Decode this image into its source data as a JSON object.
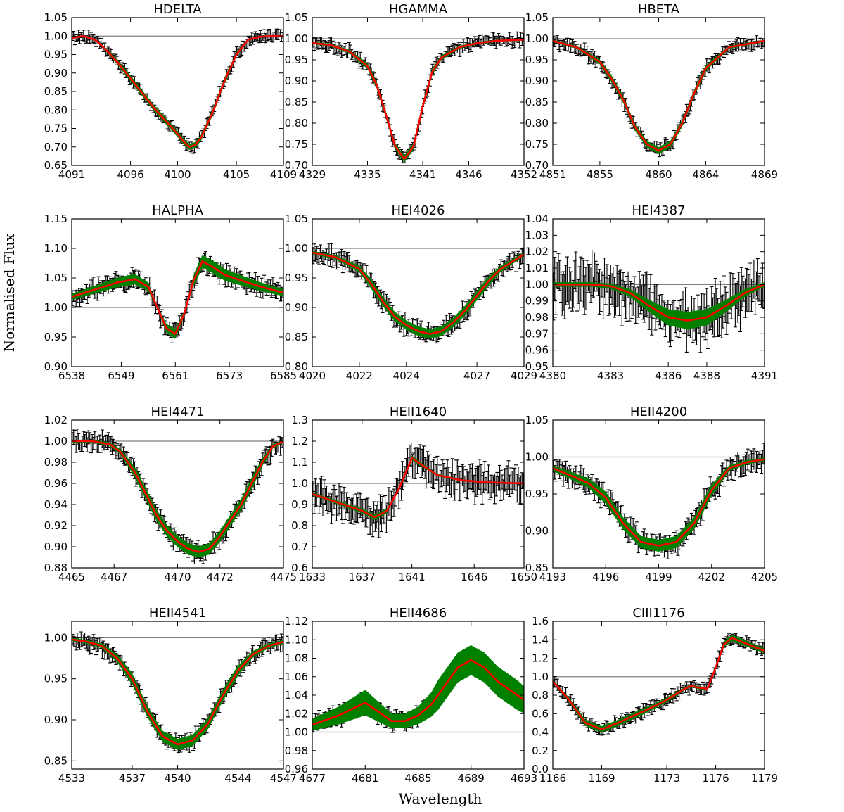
{
  "figure": {
    "xlabel": "Wavelength",
    "ylabel": "Normalised Flux"
  },
  "colors": {
    "data": "#000000",
    "band": "#008000",
    "model": "#ff0000",
    "continuum": "#808080"
  },
  "chart_data": [
    {
      "type": "line",
      "title": "HDELTA",
      "xlim": [
        4091,
        4109
      ],
      "ylim": [
        0.65,
        1.05
      ],
      "xticks": [
        "4091",
        "4096",
        "4100",
        "4105",
        "4109"
      ],
      "yticks": [
        "0.65",
        "0.70",
        "0.75",
        "0.80",
        "0.85",
        "0.90",
        "0.95",
        "1.00",
        "1.05"
      ],
      "continuum": 1.0,
      "error": 0.012,
      "band_width": 0.006,
      "model": {
        "x": [
          4091,
          4092,
          4093,
          4094,
          4095,
          4096,
          4097,
          4098,
          4099,
          4100,
          4100.5,
          4101,
          4101.5,
          4102,
          4103,
          4104,
          4105,
          4106,
          4107,
          4108,
          4109
        ],
        "y": [
          0.995,
          1.0,
          0.99,
          0.96,
          0.925,
          0.885,
          0.845,
          0.805,
          0.77,
          0.735,
          0.715,
          0.7,
          0.705,
          0.725,
          0.795,
          0.88,
          0.95,
          0.99,
          0.998,
          1.0,
          1.0
        ]
      }
    },
    {
      "type": "line",
      "title": "HGAMMA",
      "xlim": [
        4329,
        4352
      ],
      "ylim": [
        0.7,
        1.05
      ],
      "xticks": [
        "4329",
        "4335",
        "4341",
        "4346",
        "4352"
      ],
      "yticks": [
        "0.70",
        "0.75",
        "0.80",
        "0.85",
        "0.90",
        "0.95",
        "1.00",
        "1.05"
      ],
      "continuum": 1.0,
      "error": 0.012,
      "band_width": 0.006,
      "model": {
        "x": [
          4329,
          4331,
          4333,
          4335,
          4336,
          4337,
          4338,
          4339,
          4340,
          4341,
          4342,
          4343,
          4345,
          4347,
          4349,
          4352
        ],
        "y": [
          0.99,
          0.985,
          0.97,
          0.935,
          0.89,
          0.82,
          0.745,
          0.715,
          0.745,
          0.84,
          0.92,
          0.955,
          0.98,
          0.99,
          0.995,
          0.998
        ]
      }
    },
    {
      "type": "line",
      "title": "HBETA",
      "xlim": [
        4851,
        4869
      ],
      "ylim": [
        0.7,
        1.05
      ],
      "xticks": [
        "4851",
        "4855",
        "4860",
        "4864",
        "4869"
      ],
      "yticks": [
        "0.70",
        "0.75",
        "0.80",
        "0.85",
        "0.90",
        "0.95",
        "1.00",
        "1.05"
      ],
      "continuum": 1.0,
      "error": 0.012,
      "band_width": 0.006,
      "model": {
        "x": [
          4851,
          4853,
          4855,
          4856,
          4857,
          4858,
          4859,
          4860,
          4861,
          4862,
          4863,
          4864,
          4866,
          4869
        ],
        "y": [
          0.995,
          0.98,
          0.945,
          0.905,
          0.855,
          0.79,
          0.75,
          0.735,
          0.75,
          0.8,
          0.87,
          0.93,
          0.98,
          0.995
        ]
      }
    },
    {
      "type": "line",
      "title": "HALPHA",
      "xlim": [
        6538,
        6585
      ],
      "ylim": [
        0.9,
        1.15
      ],
      "xticks": [
        "6538",
        "6549",
        "6561",
        "6573",
        "6585"
      ],
      "yticks": [
        "0.90",
        "0.95",
        "1.00",
        "1.05",
        "1.10",
        "1.15"
      ],
      "continuum": 1.0,
      "error": 0.012,
      "band_width": 0.008,
      "model": {
        "x": [
          6538,
          6543,
          6548,
          6552,
          6555,
          6557,
          6559,
          6561,
          6563,
          6565,
          6567,
          6569,
          6572,
          6576,
          6580,
          6585
        ],
        "y": [
          1.018,
          1.03,
          1.042,
          1.048,
          1.035,
          1.0,
          0.965,
          0.955,
          0.99,
          1.045,
          1.078,
          1.07,
          1.055,
          1.045,
          1.035,
          1.025
        ]
      }
    },
    {
      "type": "line",
      "title": "HEI4026",
      "xlim": [
        4020,
        4029
      ],
      "ylim": [
        0.8,
        1.05
      ],
      "xticks": [
        "4020",
        "4022",
        "4024",
        "4027",
        "4029"
      ],
      "yticks": [
        "0.80",
        "0.85",
        "0.90",
        "0.95",
        "1.00",
        "1.05"
      ],
      "continuum": 1.0,
      "error": 0.012,
      "band_width": 0.006,
      "model": {
        "x": [
          4020,
          4021,
          4022,
          4022.5,
          4023,
          4023.5,
          4024,
          4024.5,
          4025,
          4025.5,
          4026,
          4026.5,
          4027,
          4027.5,
          4028,
          4029
        ],
        "y": [
          0.993,
          0.985,
          0.965,
          0.94,
          0.91,
          0.885,
          0.87,
          0.86,
          0.855,
          0.86,
          0.875,
          0.895,
          0.92,
          0.945,
          0.965,
          0.99
        ]
      }
    },
    {
      "type": "line",
      "title": "HEI4387",
      "xlim": [
        4380,
        4391
      ],
      "ylim": [
        0.95,
        1.04
      ],
      "xticks": [
        "4380",
        "4383",
        "4386",
        "4388",
        "4391"
      ],
      "yticks": [
        "0.95",
        "0.96",
        "0.97",
        "0.98",
        "0.99",
        "1.00",
        "1.01",
        "1.02",
        "1.03",
        "1.04"
      ],
      "continuum": 1.0,
      "error": 0.012,
      "band_width": 0.004,
      "model": {
        "x": [
          4380,
          4382,
          4383,
          4384,
          4385,
          4386,
          4387,
          4388,
          4389,
          4390,
          4391
        ],
        "y": [
          1.0,
          1.0,
          0.999,
          0.995,
          0.987,
          0.98,
          0.978,
          0.98,
          0.987,
          0.995,
          1.0
        ]
      }
    },
    {
      "type": "line",
      "title": "HEI4471",
      "xlim": [
        4465,
        4475
      ],
      "ylim": [
        0.88,
        1.02
      ],
      "xticks": [
        "4465",
        "4467",
        "4470",
        "4472",
        "4475"
      ],
      "yticks": [
        "0.88",
        "0.90",
        "0.92",
        "0.94",
        "0.96",
        "0.98",
        "1.00",
        "1.02"
      ],
      "continuum": 1.0,
      "error": 0.007,
      "band_width": 0.004,
      "model": {
        "x": [
          4465,
          4466,
          4466.8,
          4467.3,
          4468,
          4468.5,
          4469,
          4469.5,
          4470,
          4470.5,
          4471,
          4471.5,
          4472,
          4472.5,
          4473,
          4473.5,
          4474,
          4474.5,
          4475
        ],
        "y": [
          1.0,
          1.0,
          0.997,
          0.99,
          0.97,
          0.95,
          0.93,
          0.915,
          0.905,
          0.898,
          0.895,
          0.898,
          0.91,
          0.925,
          0.94,
          0.96,
          0.98,
          0.995,
          1.0
        ]
      }
    },
    {
      "type": "line",
      "title": "HEII1640",
      "xlim": [
        1633,
        1650
      ],
      "ylim": [
        0.6,
        1.3
      ],
      "xticks": [
        "1633",
        "1637",
        "1641",
        "1646",
        "1650"
      ],
      "yticks": [
        "0.6",
        "0.7",
        "0.8",
        "0.9",
        "1.0",
        "1.1",
        "1.2",
        "1.3"
      ],
      "continuum": 1.0,
      "error": 0.06,
      "band_width": 0.01,
      "model": {
        "x": [
          1633,
          1635,
          1637,
          1638,
          1639,
          1640,
          1641,
          1642,
          1643,
          1645,
          1647,
          1650
        ],
        "y": [
          0.95,
          0.91,
          0.87,
          0.84,
          0.87,
          0.98,
          1.12,
          1.08,
          1.04,
          1.015,
          1.005,
          1.0
        ]
      }
    },
    {
      "type": "line",
      "title": "HEII4200",
      "xlim": [
        4193,
        4205
      ],
      "ylim": [
        0.85,
        1.05
      ],
      "xticks": [
        "4193",
        "4196",
        "4199",
        "4202",
        "4205"
      ],
      "yticks": [
        "0.85",
        "0.90",
        "0.95",
        "1.00",
        "1.05"
      ],
      "continuum": 1.0,
      "error": 0.012,
      "band_width": 0.006,
      "model": {
        "x": [
          4193,
          4194,
          4195,
          4196,
          4197,
          4198,
          4199,
          4200,
          4201,
          4202,
          4203,
          4204,
          4205
        ],
        "y": [
          0.985,
          0.975,
          0.965,
          0.945,
          0.91,
          0.885,
          0.88,
          0.885,
          0.91,
          0.955,
          0.985,
          0.993,
          0.997
        ]
      }
    },
    {
      "type": "line",
      "title": "HEII4541",
      "xlim": [
        4533,
        4547
      ],
      "ylim": [
        0.84,
        1.02
      ],
      "xticks": [
        "4533",
        "4537",
        "4540",
        "4544",
        "4547"
      ],
      "yticks": [
        "0.85",
        "0.90",
        "0.95",
        "1.00"
      ],
      "continuum": 1.0,
      "error": 0.008,
      "band_width": 0.005,
      "model": {
        "x": [
          4533,
          4534,
          4535,
          4536,
          4537,
          4538,
          4539,
          4540,
          4541,
          4542,
          4543,
          4544,
          4545,
          4546,
          4547
        ],
        "y": [
          0.998,
          0.995,
          0.99,
          0.975,
          0.95,
          0.91,
          0.88,
          0.87,
          0.875,
          0.895,
          0.93,
          0.96,
          0.98,
          0.99,
          0.995
        ]
      }
    },
    {
      "type": "line",
      "title": "HEII4686",
      "xlim": [
        4677,
        4693
      ],
      "ylim": [
        0.96,
        1.12
      ],
      "xticks": [
        "4677",
        "4681",
        "4685",
        "4689",
        "4693"
      ],
      "yticks": [
        "0.96",
        "0.98",
        "1.00",
        "1.02",
        "1.04",
        "1.06",
        "1.08",
        "1.10",
        "1.12"
      ],
      "continuum": 1.0,
      "error": 0.008,
      "band_width": 0.012,
      "model": {
        "x": [
          4677,
          4679,
          4681,
          4682,
          4683,
          4684,
          4685,
          4686,
          4687,
          4688,
          4689,
          4690,
          4691,
          4693
        ],
        "y": [
          1.008,
          1.018,
          1.032,
          1.022,
          1.012,
          1.012,
          1.018,
          1.03,
          1.05,
          1.07,
          1.078,
          1.07,
          1.055,
          1.035
        ]
      }
    },
    {
      "type": "line",
      "title": "CIII1176",
      "xlim": [
        1166,
        1179
      ],
      "ylim": [
        0.0,
        1.6
      ],
      "xticks": [
        "1166",
        "1169",
        "1173",
        "1176",
        "1179"
      ],
      "yticks": [
        "0.0",
        "0.2",
        "0.4",
        "0.6",
        "0.8",
        "1.0",
        "1.2",
        "1.4",
        "1.6"
      ],
      "continuum": 1.0,
      "error": 0.05,
      "band_width": 0.025,
      "model": {
        "x": [
          1166,
          1167,
          1168,
          1169,
          1170,
          1171,
          1172,
          1173,
          1174,
          1174.5,
          1175,
          1175.5,
          1176,
          1176.5,
          1177,
          1178,
          1179
        ],
        "y": [
          0.95,
          0.75,
          0.5,
          0.43,
          0.5,
          0.58,
          0.66,
          0.75,
          0.86,
          0.9,
          0.88,
          0.87,
          1.1,
          1.35,
          1.42,
          1.35,
          1.28
        ]
      }
    }
  ]
}
